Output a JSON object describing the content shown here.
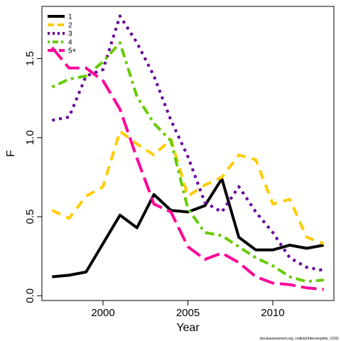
{
  "chart_data": {
    "type": "line",
    "xlabel": "Year",
    "ylabel": "F",
    "xlim": [
      1996.4,
      2013.6
    ],
    "ylim": [
      -0.03,
      1.83
    ],
    "xticks": [
      2000,
      2005,
      2010
    ],
    "xtick_labels": [
      "2000",
      "2005",
      "2010"
    ],
    "yticks": [
      0.0,
      0.5,
      1.0,
      1.5
    ],
    "ytick_labels": [
      "0.0",
      "0.5",
      "1.0",
      "1.5"
    ],
    "grid": false,
    "legend_position": "top-left",
    "x": [
      1997,
      1998,
      1999,
      2000,
      2001,
      2002,
      2003,
      2004,
      2005,
      2006,
      2007,
      2008,
      2009,
      2010,
      2011,
      2012,
      2013
    ],
    "series": [
      {
        "name": "1",
        "color": "#000000",
        "dash": "solid",
        "values": [
          0.12,
          0.13,
          0.15,
          0.33,
          0.51,
          0.43,
          0.64,
          0.54,
          0.53,
          0.57,
          0.74,
          0.37,
          0.29,
          0.29,
          0.32,
          0.3,
          0.32
        ]
      },
      {
        "name": "2",
        "color": "#FFCC00",
        "dash": "dashed",
        "values": [
          0.54,
          0.49,
          0.63,
          0.69,
          1.04,
          0.96,
          0.89,
          0.99,
          0.63,
          0.7,
          0.75,
          0.89,
          0.86,
          0.58,
          0.61,
          0.37,
          0.33
        ]
      },
      {
        "name": "3",
        "color": "#660099",
        "dash": "dotted",
        "values": [
          1.11,
          1.13,
          1.39,
          1.43,
          1.77,
          1.6,
          1.39,
          1.11,
          0.88,
          0.59,
          0.53,
          0.69,
          0.53,
          0.4,
          0.24,
          0.18,
          0.16
        ]
      },
      {
        "name": "4",
        "color": "#66CC00",
        "dash": "dotdash",
        "values": [
          1.32,
          1.37,
          1.39,
          1.48,
          1.6,
          1.26,
          1.09,
          0.98,
          0.55,
          0.4,
          0.38,
          0.31,
          0.24,
          0.19,
          0.12,
          0.09,
          0.1
        ]
      },
      {
        "name": "5+",
        "color": "#FF0099",
        "dash": "longdash",
        "values": [
          1.57,
          1.44,
          1.44,
          1.36,
          1.18,
          0.87,
          0.58,
          0.53,
          0.31,
          0.23,
          0.27,
          0.21,
          0.12,
          0.08,
          0.07,
          0.05,
          0.04
        ]
      }
    ],
    "annotation": "stockassessment.org, codkat14decreeplots, r3191"
  }
}
